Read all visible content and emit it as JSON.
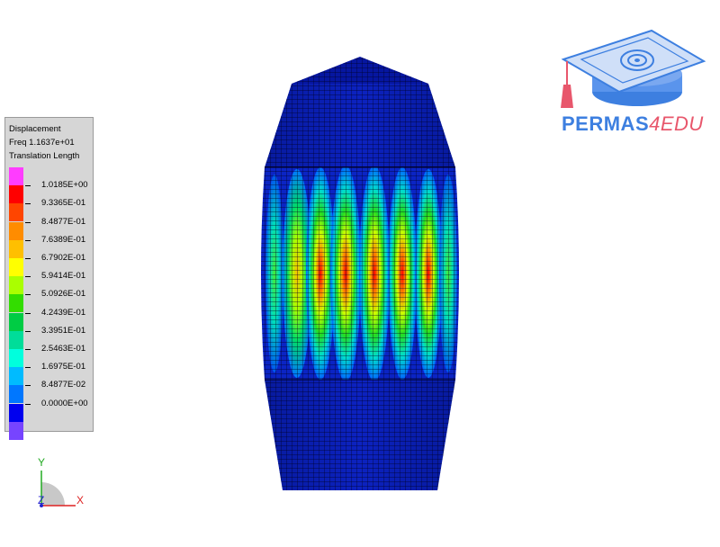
{
  "legend": {
    "title": "Displacement",
    "frequency": "Freq 1.1637e+01",
    "quantity": "Translation Length",
    "color_scale": [
      "#ff3cff",
      "#ff0000",
      "#ff4500",
      "#ff8c00",
      "#ffbf00",
      "#ffff00",
      "#aaff00",
      "#33dd00",
      "#00cc44",
      "#00dd99",
      "#00ffdd",
      "#00bbff",
      "#0077ff",
      "#0000ee",
      "#7744ff"
    ],
    "values": [
      "1.0185E+00",
      "9.3365E-01",
      "8.4877E-01",
      "7.6389E-01",
      "6.7902E-01",
      "5.9414E-01",
      "5.0926E-01",
      "4.2439E-01",
      "3.3951E-01",
      "2.5463E-01",
      "1.6975E-01",
      "8.4877E-02",
      "0.0000E+00"
    ]
  },
  "logo": {
    "name": "PERMAS",
    "suffix": "4EDU",
    "icon": "graduation-cap-logo-icon",
    "colors": {
      "primary": "#3d7fe0",
      "accent": "#e8576c"
    }
  },
  "axes": {
    "x": "X",
    "y": "Y",
    "z": "Z"
  },
  "model": {
    "mesh_color": "#0a1aa8",
    "edge_color": "#000030"
  }
}
